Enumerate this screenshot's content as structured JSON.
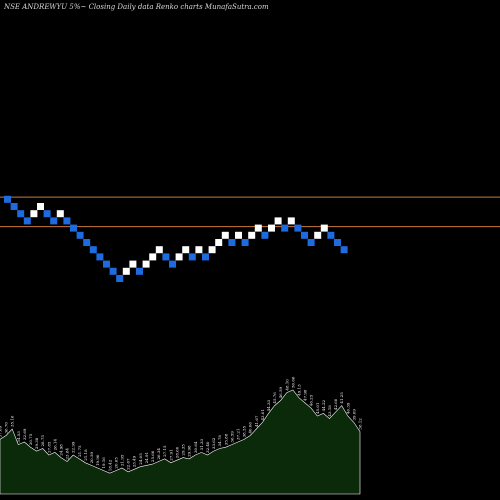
{
  "header": {
    "title": "NSE ANDREWYU 5%~  Closing Daily data  Renko  charts MunafaSutra.com"
  },
  "colors": {
    "background": "#000000",
    "brick_up": "#ffffff",
    "brick_down": "#1e6be0",
    "level_line": "#c87a3a",
    "volume_fill": "#0a2a0a",
    "volume_stroke": "#ffffff"
  },
  "chart_data": {
    "type": "renko",
    "title": "NSE ANDREWYU 5%~ Closing Daily data Renko charts MunafaSutra.com",
    "xlabel": "",
    "ylabel": "",
    "grid": false,
    "bricks": [
      {
        "dir": "down",
        "level": 1
      },
      {
        "dir": "down",
        "level": 0
      },
      {
        "dir": "down",
        "level": -1
      },
      {
        "dir": "down",
        "level": -2
      },
      {
        "dir": "up",
        "level": -1
      },
      {
        "dir": "up",
        "level": 0
      },
      {
        "dir": "down",
        "level": -1
      },
      {
        "dir": "down",
        "level": -2
      },
      {
        "dir": "up",
        "level": -1
      },
      {
        "dir": "down",
        "level": -2
      },
      {
        "dir": "down",
        "level": -3
      },
      {
        "dir": "down",
        "level": -4
      },
      {
        "dir": "down",
        "level": -5
      },
      {
        "dir": "down",
        "level": -6
      },
      {
        "dir": "down",
        "level": -7
      },
      {
        "dir": "down",
        "level": -8
      },
      {
        "dir": "down",
        "level": -9
      },
      {
        "dir": "down",
        "level": -10
      },
      {
        "dir": "up",
        "level": -9
      },
      {
        "dir": "up",
        "level": -8
      },
      {
        "dir": "down",
        "level": -9
      },
      {
        "dir": "up",
        "level": -8
      },
      {
        "dir": "up",
        "level": -7
      },
      {
        "dir": "up",
        "level": -6
      },
      {
        "dir": "down",
        "level": -7
      },
      {
        "dir": "down",
        "level": -8
      },
      {
        "dir": "up",
        "level": -7
      },
      {
        "dir": "up",
        "level": -6
      },
      {
        "dir": "down",
        "level": -7
      },
      {
        "dir": "up",
        "level": -6
      },
      {
        "dir": "down",
        "level": -7
      },
      {
        "dir": "up",
        "level": -6
      },
      {
        "dir": "up",
        "level": -5
      },
      {
        "dir": "up",
        "level": -4
      },
      {
        "dir": "down",
        "level": -5
      },
      {
        "dir": "up",
        "level": -4
      },
      {
        "dir": "down",
        "level": -5
      },
      {
        "dir": "up",
        "level": -4
      },
      {
        "dir": "up",
        "level": -3
      },
      {
        "dir": "down",
        "level": -4
      },
      {
        "dir": "up",
        "level": -3
      },
      {
        "dir": "up",
        "level": -2
      },
      {
        "dir": "down",
        "level": -3
      },
      {
        "dir": "up",
        "level": -2
      },
      {
        "dir": "down",
        "level": -3
      },
      {
        "dir": "down",
        "level": -4
      },
      {
        "dir": "down",
        "level": -5
      },
      {
        "dir": "up",
        "level": -4
      },
      {
        "dir": "up",
        "level": -3
      },
      {
        "dir": "down",
        "level": -4
      },
      {
        "dir": "down",
        "level": -5
      },
      {
        "dir": "down",
        "level": -6
      }
    ],
    "reference_lines": [
      {
        "name": "upper",
        "level": 1.3
      },
      {
        "name": "lower",
        "level": -2.8
      }
    ],
    "volume": {
      "values": [
        42,
        45,
        50,
        38,
        40,
        36,
        33,
        35,
        30,
        32,
        28,
        25,
        30,
        27,
        24,
        22,
        20,
        18,
        16,
        18,
        20,
        17,
        19,
        21,
        22,
        23,
        25,
        27,
        24,
        26,
        28,
        27,
        30,
        32,
        30,
        33,
        35,
        36,
        38,
        40,
        42,
        45,
        50,
        55,
        62,
        68,
        72,
        78,
        80,
        74,
        70,
        66,
        60,
        62,
        58,
        63,
        68,
        60,
        55,
        48
      ],
      "labels": [
        "37.69",
        "36.70",
        "35.16",
        "34.53",
        "32.69",
        "30.75",
        "29.38",
        "28.75",
        "27.85",
        "26.14",
        "24.98",
        "23.84",
        "22.99",
        "21.75",
        "21.18",
        "20.59",
        "19.90",
        "19.16",
        "18.42",
        "20.65",
        "21.95",
        "22.67",
        "23.49",
        "24.05",
        "24.91",
        "25.66",
        "26.34",
        "27.15",
        "27.91",
        "28.60",
        "29.35",
        "29.98",
        "30.64",
        "31.33",
        "32.40",
        "33.62",
        "34.78",
        "35.88",
        "36.59",
        "37.21",
        "38.55",
        "40.06",
        "41.67",
        "43.01",
        "44.33",
        "45.76",
        "46.59",
        "48.10",
        "50.66",
        "49.13",
        "47.98",
        "46.25",
        "45.01",
        "44.22",
        "43.18",
        "42.60",
        "41.25",
        "40.39",
        "39.09",
        "38.12"
      ]
    }
  }
}
